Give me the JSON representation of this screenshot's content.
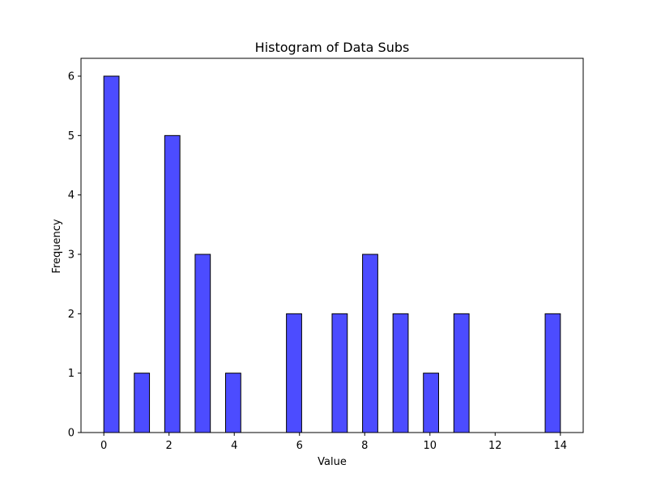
{
  "chart_data": {
    "type": "bar",
    "title": "Histogram of Data Subs",
    "xlabel": "Value",
    "ylabel": "Frequency",
    "xlim": [
      -0.7,
      14.7
    ],
    "ylim": [
      0,
      6.3
    ],
    "x_ticks": [
      0,
      2,
      4,
      6,
      8,
      10,
      12,
      14
    ],
    "y_ticks": [
      0,
      1,
      2,
      3,
      4,
      5,
      6
    ],
    "bar_width": 0.4667,
    "bars": [
      {
        "x": 0.233,
        "value": 6
      },
      {
        "x": 1.167,
        "value": 1
      },
      {
        "x": 2.1,
        "value": 5
      },
      {
        "x": 3.033,
        "value": 3
      },
      {
        "x": 3.967,
        "value": 1
      },
      {
        "x": 4.9,
        "value": 0
      },
      {
        "x": 5.833,
        "value": 2
      },
      {
        "x": 6.767,
        "value": 0
      },
      {
        "x": 7.233,
        "value": 2
      },
      {
        "x": 8.167,
        "value": 3
      },
      {
        "x": 9.1,
        "value": 2
      },
      {
        "x": 10.033,
        "value": 1
      },
      {
        "x": 10.967,
        "value": 2
      },
      {
        "x": 11.9,
        "value": 0
      },
      {
        "x": 12.833,
        "value": 0
      },
      {
        "x": 13.767,
        "value": 2
      }
    ],
    "bar_color": "#0000ff",
    "bar_opacity": 0.7,
    "edge_color": "#000000",
    "grid": false,
    "legend": "none"
  }
}
